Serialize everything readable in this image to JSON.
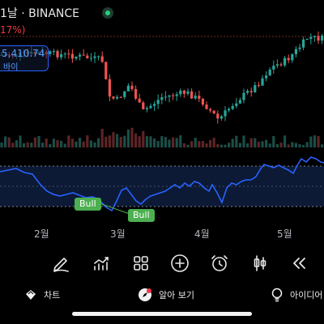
{
  "header": {
    "title": "1날 · BINANCE",
    "change": "17%)"
  },
  "buy_badge": {
    "price": "5,410.74",
    "label": "바이"
  },
  "indicator_labels": [
    "Bull",
    "Bull"
  ],
  "months": [
    "2월",
    "3월",
    "4월",
    "5월"
  ],
  "toolbar": [
    {
      "name": "drawing-pen-icon"
    },
    {
      "name": "indicators-icon"
    },
    {
      "name": "grid-layout-icon"
    },
    {
      "name": "add-plus-icon"
    },
    {
      "name": "alarm-clock-icon"
    },
    {
      "name": "candle-type-icon"
    },
    {
      "name": "replay-rewind-icon"
    }
  ],
  "bottom_nav": {
    "chart": "차트",
    "ideas_view": "알아 보기",
    "ideas": "아이디어"
  },
  "colors": {
    "up": "#26a69a",
    "down": "#ef5350",
    "rsi_line": "#2962ff",
    "bull_label": "#4caf50",
    "live": "#26d07c"
  }
}
